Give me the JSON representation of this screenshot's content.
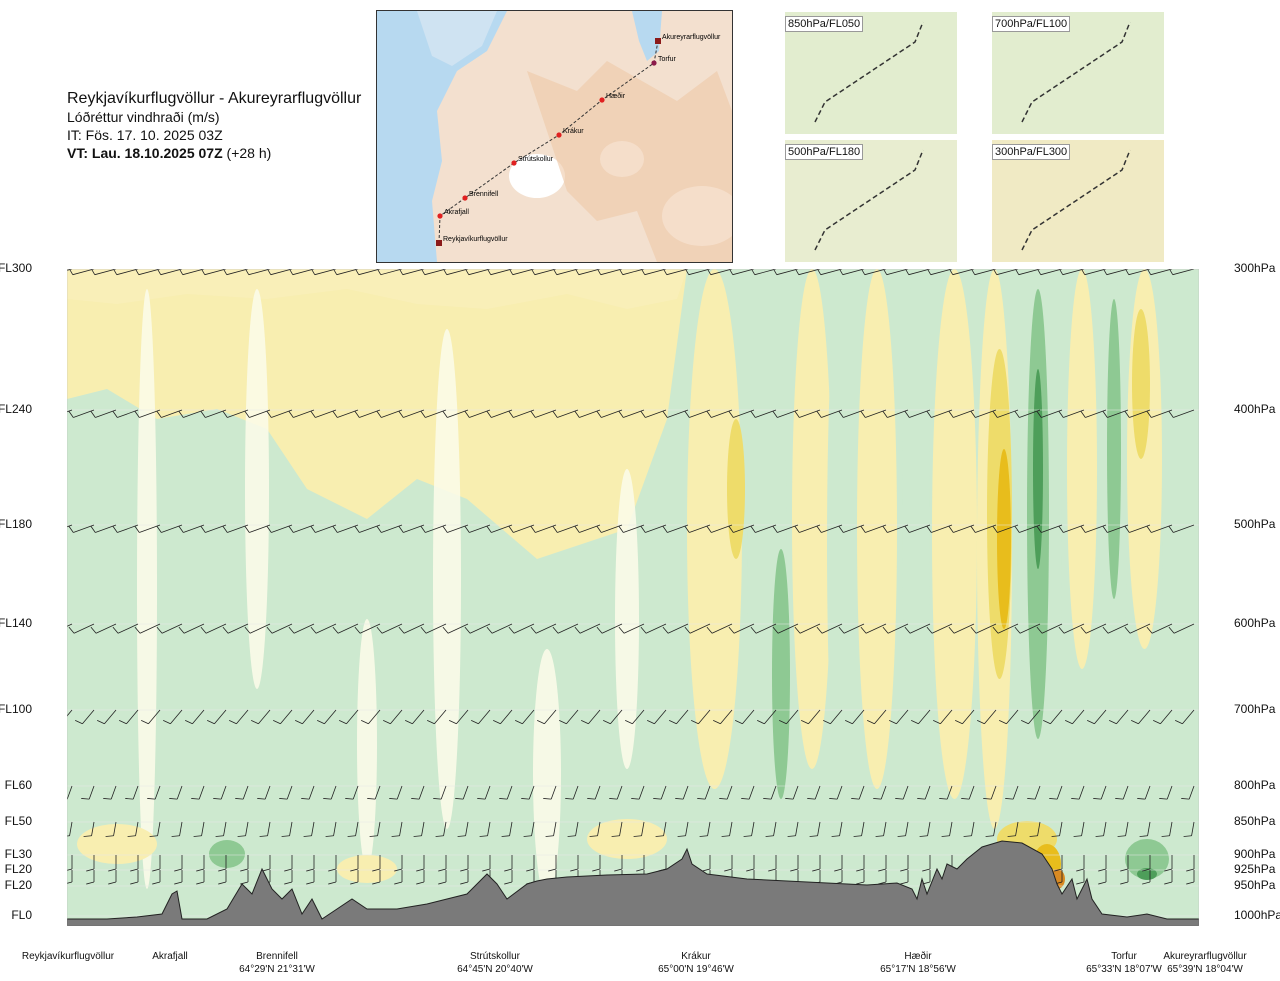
{
  "header": {
    "title": "Reykjavíkurflugvöllur - Akureyrarflugvöllur",
    "subtitle": "Lóðréttur vindhraði (m/s)",
    "issue_time": "IT: Fös. 17. 10. 2025 03Z",
    "valid_time": "VT: Lau. 18.10.2025 07Z",
    "valid_offset": "(+28 h)"
  },
  "map": {
    "waypoints": [
      "Akureyrarflugvöllur",
      "Torfur",
      "Hæðir",
      "Krákur",
      "Strútskollur",
      "Brennifell",
      "Akrafjall",
      "Reykjavíkurflugvöllur"
    ]
  },
  "panels": [
    "850hPa/FL050",
    "700hPa/FL100",
    "500hPa/FL180",
    "300hPa/FL300"
  ],
  "chart_data": {
    "type": "heatmap",
    "title": "Reykjavíkurflugvöllur - Akureyrarflugvöllur",
    "subtitle": "Lóðréttur vindhraði (m/s)",
    "flight_levels": [
      "FL300",
      "FL240",
      "FL180",
      "FL140",
      "FL100",
      "FL60",
      "FL50",
      "FL30",
      "FL20",
      "FL20",
      "FL0"
    ],
    "pressure_levels": [
      "300hPa",
      "400hPa",
      "500hPa",
      "600hPa",
      "700hPa",
      "800hPa",
      "850hPa",
      "900hPa",
      "925hPa",
      "950hPa",
      "1000hPa"
    ],
    "pressure_values": [
      300,
      400,
      500,
      600,
      700,
      800,
      850,
      900,
      925,
      950,
      1000
    ],
    "route_points": [
      {
        "name": "Reykjavíkurflugvöllur",
        "coords": "",
        "distance": 0
      },
      {
        "name": "Akrafjall",
        "coords": "",
        "distance": 0.1
      },
      {
        "name": "Brennifell",
        "coords": "64°29'N 21°31'W",
        "distance": 0.2
      },
      {
        "name": "Strútskollur",
        "coords": "64°45'N 20°40'W",
        "distance": 0.38
      },
      {
        "name": "Krákur",
        "coords": "65°00'N 19°46'W",
        "distance": 0.57
      },
      {
        "name": "Hæðir",
        "coords": "65°17'N 18°56'W",
        "distance": 0.75
      },
      {
        "name": "Torfur",
        "coords": "65°33'N 18°07'W",
        "distance": 0.95
      },
      {
        "name": "Akureyrarflugvöllur",
        "coords": "65°39'N 18°04'W",
        "distance": 1.0
      }
    ],
    "colors": {
      "strong_up": "#4e9e5a",
      "mod_up": "#8ec993",
      "weak_up": "#cde9cf",
      "neutral": "#fbfbe8",
      "weak_down": "#f8eeb0",
      "mod_down": "#eedc6a",
      "strong_down": "#e8bd1c",
      "extreme_down": "#d98a22",
      "terrain": "#7a7a7a"
    }
  }
}
